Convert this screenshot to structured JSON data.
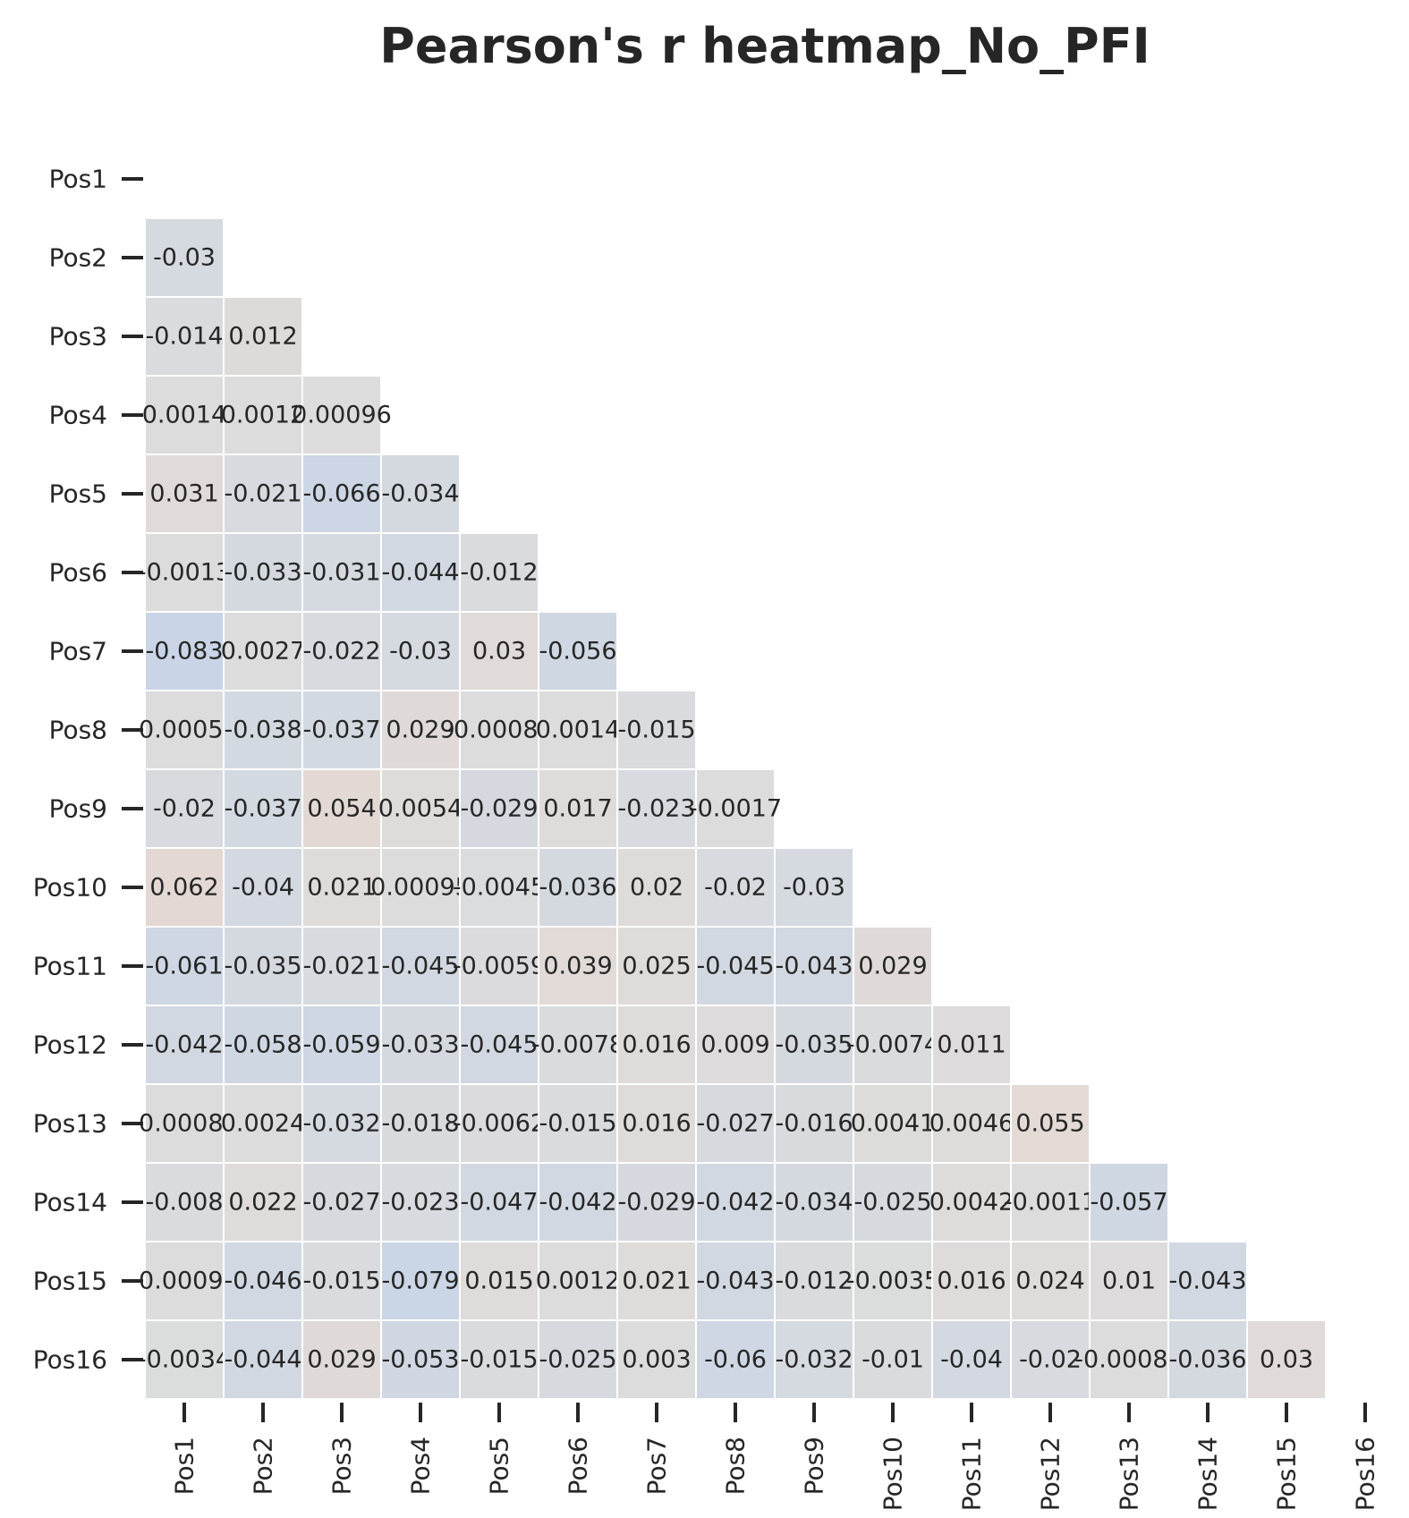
{
  "chart_data": {
    "type": "heatmap",
    "title": "Pearson's r heatmap_No_PFI",
    "xlabel": "",
    "ylabel": "",
    "mask": "upper-triangle-including-diagonal",
    "labels": [
      "Pos1",
      "Pos2",
      "Pos3",
      "Pos4",
      "Pos5",
      "Pos6",
      "Pos7",
      "Pos8",
      "Pos9",
      "Pos10",
      "Pos11",
      "Pos12",
      "Pos13",
      "Pos14",
      "Pos15",
      "Pos16"
    ],
    "matrix": [
      [],
      [
        "-0.03"
      ],
      [
        "-0.014",
        "0.012"
      ],
      [
        "0.0014",
        "0.0012",
        "0.00096"
      ],
      [
        "0.031",
        "-0.021",
        "-0.066",
        "-0.034"
      ],
      [
        "-0.0013",
        "-0.033",
        "-0.031",
        "-0.044",
        "-0.012"
      ],
      [
        "-0.083",
        "0.0027",
        "-0.022",
        "-0.03",
        "0.03",
        "-0.056"
      ],
      [
        "-0.00059",
        "-0.038",
        "-0.037",
        "0.029",
        "-0.00089",
        "0.0014",
        "-0.015"
      ],
      [
        "-0.02",
        "-0.037",
        "0.054",
        "0.0054",
        "-0.029",
        "0.017",
        "-0.023",
        "-0.0017"
      ],
      [
        "0.062",
        "-0.04",
        "0.021",
        "0.00095",
        "-0.0045",
        "-0.036",
        "0.02",
        "-0.02",
        "-0.03"
      ],
      [
        "-0.061",
        "-0.035",
        "-0.021",
        "-0.045",
        "-0.0059",
        "0.039",
        "0.025",
        "-0.045",
        "-0.043",
        "0.029"
      ],
      [
        "-0.042",
        "-0.058",
        "-0.059",
        "-0.033",
        "-0.045",
        "-0.0078",
        "0.016",
        "0.009",
        "-0.035",
        "-0.0074",
        "0.011"
      ],
      [
        "-0.00084",
        "0.0024",
        "-0.032",
        "-0.018",
        "-0.0062",
        "-0.015",
        "0.016",
        "-0.027",
        "-0.016",
        "0.0041",
        "0.0046",
        "0.055"
      ],
      [
        "-0.008",
        "0.022",
        "-0.027",
        "-0.023",
        "-0.047",
        "-0.042",
        "-0.029",
        "-0.042",
        "-0.034",
        "-0.025",
        "0.0042",
        "-0.0011",
        "-0.057"
      ],
      [
        "-0.00095",
        "-0.046",
        "-0.015",
        "-0.079",
        "0.015",
        "0.0012",
        "0.021",
        "-0.043",
        "-0.012",
        "-0.0035",
        "0.016",
        "0.024",
        "0.01",
        "-0.043"
      ],
      [
        "-0.0034",
        "-0.044",
        "0.029",
        "-0.053",
        "-0.015",
        "-0.025",
        "0.003",
        "-0.06",
        "-0.032",
        "-0.01",
        "-0.04",
        "-0.02",
        "-0.00085",
        "-0.036",
        "0.03"
      ]
    ],
    "color_scale": {
      "negative": "#c5d3e8",
      "neutral": "#dcdcdc",
      "positive": "#e8d6cf",
      "vmin": -0.1,
      "vmax": 0.1
    },
    "cell_border_color": "#ffffff",
    "grid": false,
    "legend": "none"
  }
}
